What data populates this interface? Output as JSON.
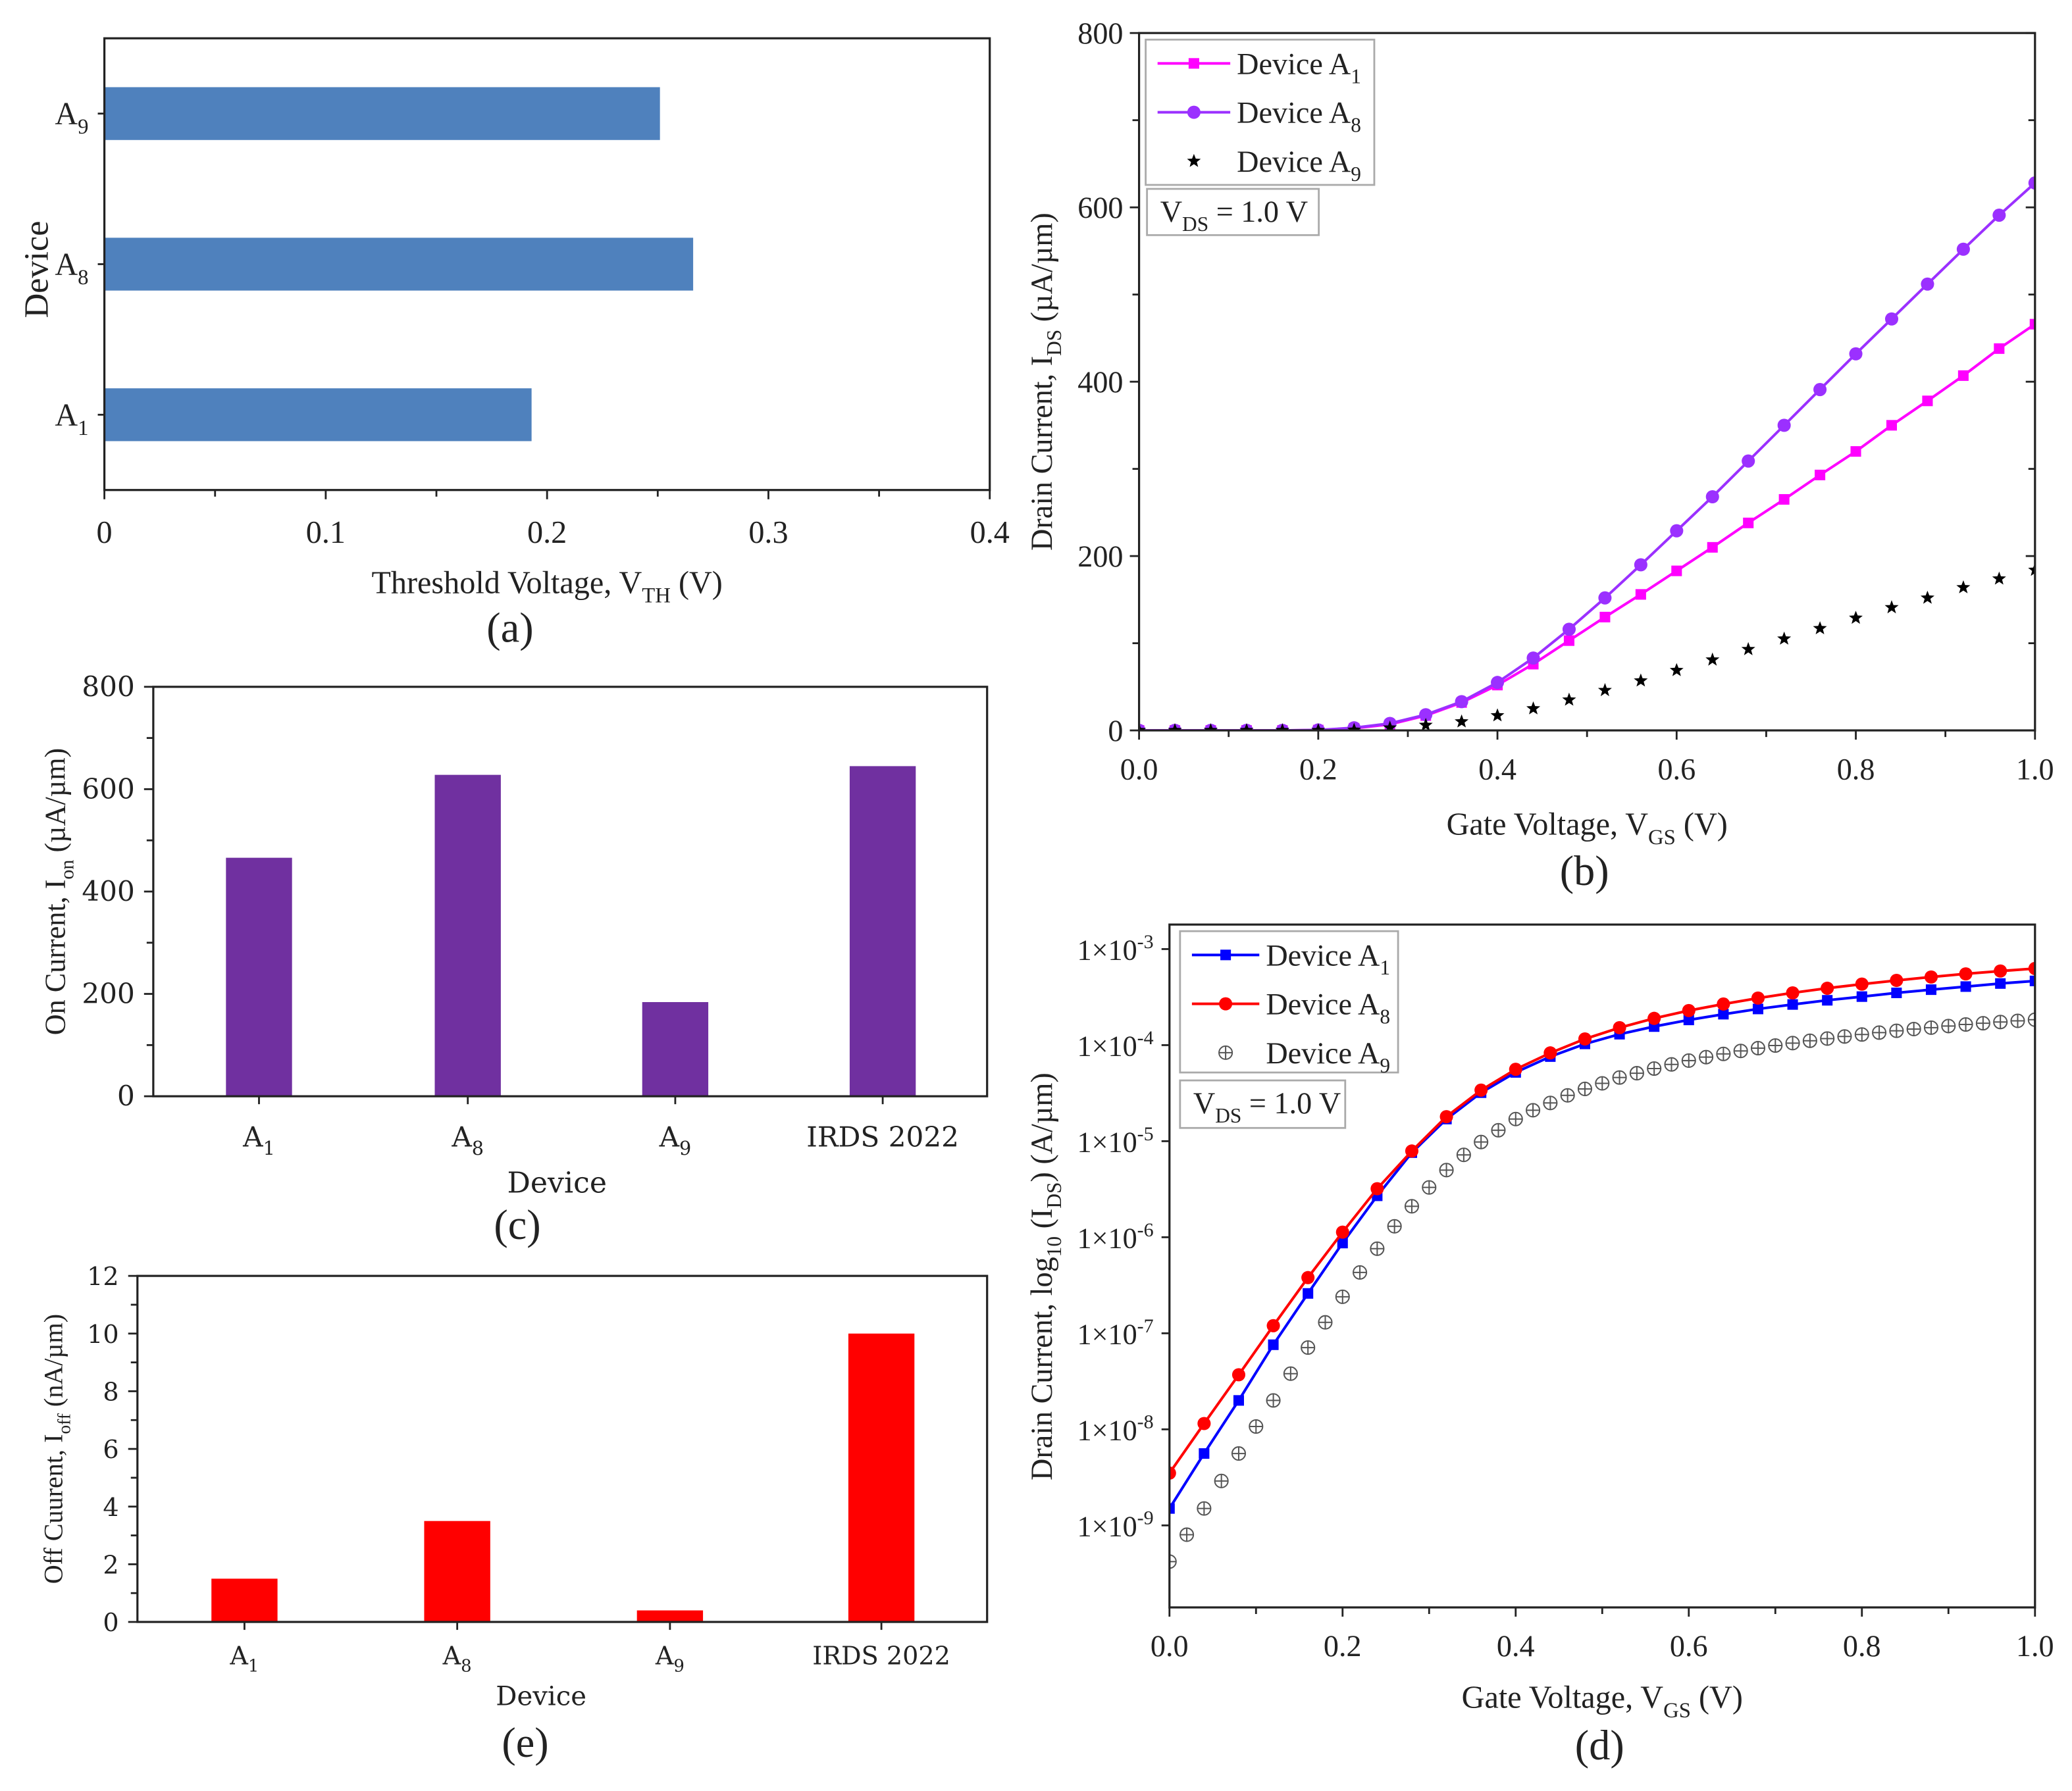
{
  "chart_data": [
    {
      "id": "a",
      "type": "bar",
      "orientation": "horizontal",
      "panel_label": "(a)",
      "categories": [
        [
          {
            "t": "A"
          },
          {
            "t": "1",
            "sub": true
          }
        ],
        [
          {
            "t": "A"
          },
          {
            "t": "8",
            "sub": true
          }
        ],
        [
          {
            "t": "A"
          },
          {
            "t": "9",
            "sub": true
          }
        ]
      ],
      "values": [
        0.193,
        0.266,
        0.251
      ],
      "color": "#4f81bd",
      "xlabel": [
        {
          "t": "Threshold Voltage, V"
        },
        {
          "t": "TH",
          "sub": true
        },
        {
          "t": " (V)"
        }
      ],
      "ylabel": [
        {
          "t": "Device"
        }
      ],
      "xlim": [
        0,
        0.4
      ],
      "xticks": [
        "0",
        "0.1",
        "0.2",
        "0.3",
        "0.4"
      ]
    },
    {
      "id": "b",
      "type": "line",
      "panel_label": "(b)",
      "xlabel": [
        {
          "t": "Gate Voltage, V"
        },
        {
          "t": "GS",
          "sub": true
        },
        {
          "t": " (V)"
        }
      ],
      "ylabel": [
        {
          "t": "Drain Current, I"
        },
        {
          "t": "DS",
          "sub": true
        },
        {
          "t": " (µA/µm)"
        }
      ],
      "xlim": [
        0,
        1
      ],
      "ylim": [
        0,
        800
      ],
      "xticks": [
        "0.0",
        "0.2",
        "0.4",
        "0.6",
        "0.8",
        "1.0"
      ],
      "yticks": [
        "0",
        "200",
        "400",
        "600",
        "800"
      ],
      "legend_position": "top-left",
      "annotation": [
        {
          "t": "V"
        },
        {
          "t": "DS",
          "sub": true
        },
        {
          "t": " = 1.0 V"
        }
      ],
      "series": [
        {
          "name": [
            {
              "t": "Device A"
            },
            {
              "t": "1",
              "sub": true
            }
          ],
          "color": "#ff00ff",
          "marker": "square",
          "line": true,
          "x_start": 0,
          "x_step": 0.04,
          "values": [
            0,
            0,
            0,
            0,
            0,
            0.4,
            2.5,
            7,
            17,
            32,
            52,
            76,
            103,
            130,
            156,
            183,
            210,
            238,
            265,
            293,
            320,
            350,
            378,
            407,
            438,
            466
          ]
        },
        {
          "name": [
            {
              "t": "Device A"
            },
            {
              "t": "8",
              "sub": true
            }
          ],
          "color": "#9b30ff",
          "marker": "circle",
          "line": true,
          "x_start": 0,
          "x_step": 0.04,
          "values": [
            0,
            0,
            0,
            0,
            0,
            0.5,
            3,
            8,
            18,
            33,
            55,
            83,
            116,
            152,
            190,
            229,
            268,
            309,
            350,
            391,
            432,
            472,
            512,
            552,
            591,
            628
          ]
        },
        {
          "name": [
            {
              "t": "Device A"
            },
            {
              "t": "9",
              "sub": true
            }
          ],
          "color": "#000000",
          "marker": "star",
          "line": false,
          "x_start": 0,
          "x_step": 0.04,
          "values": [
            0,
            0,
            0,
            0,
            0,
            0,
            0.5,
            3,
            6,
            10,
            17,
            25,
            35,
            46,
            57,
            69,
            81,
            93,
            105,
            117,
            129,
            141,
            152,
            164,
            174,
            184
          ]
        }
      ]
    },
    {
      "id": "c",
      "type": "bar",
      "panel_label": "(c)",
      "categories": [
        [
          {
            "t": "A"
          },
          {
            "t": "1",
            "sub": true
          }
        ],
        [
          {
            "t": "A"
          },
          {
            "t": "8",
            "sub": true
          }
        ],
        [
          {
            "t": "A"
          },
          {
            "t": "9",
            "sub": true
          }
        ],
        [
          {
            "t": "IRDS 2022"
          }
        ]
      ],
      "values": [
        466,
        628,
        184,
        645
      ],
      "color": "#7030a0",
      "xlabel": [
        {
          "t": "Device"
        }
      ],
      "ylabel": [
        {
          "t": "On Current, I"
        },
        {
          "t": "on",
          "sub": true
        },
        {
          "t": " (µA/µm)"
        }
      ],
      "ylim": [
        0,
        800
      ],
      "yticks": [
        "0",
        "200",
        "400",
        "600",
        "800"
      ]
    },
    {
      "id": "e",
      "type": "bar",
      "panel_label": "(e)",
      "categories": [
        [
          {
            "t": "A"
          },
          {
            "t": "1",
            "sub": true
          }
        ],
        [
          {
            "t": "A"
          },
          {
            "t": "8",
            "sub": true
          }
        ],
        [
          {
            "t": "A"
          },
          {
            "t": "9",
            "sub": true
          }
        ],
        [
          {
            "t": "IRDS 2022"
          }
        ]
      ],
      "values": [
        1.5,
        3.5,
        0.4,
        10
      ],
      "color": "#ff0000",
      "xlabel": [
        {
          "t": "Device"
        }
      ],
      "ylabel": [
        {
          "t": "Off Cuurent, I"
        },
        {
          "t": "off",
          "sub": true
        },
        {
          "t": " (nA/µm)"
        }
      ],
      "ylim": [
        0,
        12
      ],
      "yticks": [
        "0",
        "2",
        "4",
        "6",
        "8",
        "10",
        "12"
      ]
    },
    {
      "id": "d",
      "type": "line",
      "yscale": "log",
      "panel_label": "(d)",
      "xlabel": [
        {
          "t": "Gate Voltage, V"
        },
        {
          "t": "GS",
          "sub": true
        },
        {
          "t": " (V)"
        }
      ],
      "ylabel": [
        {
          "t": "Drain Current, log"
        },
        {
          "t": "10",
          "sub": true
        },
        {
          "t": " (I"
        },
        {
          "t": "DS",
          "sub": true
        },
        {
          "t": ") (A/µm)"
        }
      ],
      "xlim": [
        0,
        1
      ],
      "ylim": [
        1.4e-10,
        0.0018
      ],
      "xticks": [
        "0.0",
        "0.2",
        "0.4",
        "0.6",
        "0.8",
        "1.0"
      ],
      "yticks": [
        [
          {
            "t": "1×10"
          },
          {
            "t": "-9",
            "sup": true
          }
        ],
        [
          {
            "t": "1×10"
          },
          {
            "t": "-8",
            "sup": true
          }
        ],
        [
          {
            "t": "1×10"
          },
          {
            "t": "-7",
            "sup": true
          }
        ],
        [
          {
            "t": "1×10"
          },
          {
            "t": "-6",
            "sup": true
          }
        ],
        [
          {
            "t": "1×10"
          },
          {
            "t": "-5",
            "sup": true
          }
        ],
        [
          {
            "t": "1×10"
          },
          {
            "t": "-4",
            "sup": true
          }
        ],
        [
          {
            "t": "1×10"
          },
          {
            "t": "-3",
            "sup": true
          }
        ]
      ],
      "legend_position": "top-left",
      "annotation": [
        {
          "t": "V"
        },
        {
          "t": "DS",
          "sub": true
        },
        {
          "t": " = 1.0 V"
        }
      ],
      "series": [
        {
          "name": [
            {
              "t": "Device A"
            },
            {
              "t": "1",
              "sub": true
            }
          ],
          "color": "#0000ff",
          "marker": "square",
          "line": true,
          "x_start": 0,
          "x_step": 0.04,
          "values": [
            1.5e-09,
            5.6e-09,
            2e-08,
            7.6e-08,
            2.6e-07,
            8.7e-07,
            2.7e-06,
            7.6e-06,
            1.7e-05,
            3.2e-05,
            5.2e-05,
            7.6e-05,
            0.000103,
            0.00013,
            0.000156,
            0.000183,
            0.00021,
            0.000238,
            0.000265,
            0.000293,
            0.00032,
            0.00035,
            0.000378,
            0.000407,
            0.000438,
            0.000466
          ]
        },
        {
          "name": [
            {
              "t": "Device A"
            },
            {
              "t": "8",
              "sub": true
            }
          ],
          "color": "#ff0000",
          "marker": "circle",
          "line": true,
          "x_start": 0,
          "x_step": 0.04,
          "values": [
            3.5e-09,
            1.15e-08,
            3.7e-08,
            1.2e-07,
            3.8e-07,
            1.13e-06,
            3.2e-06,
            7.9e-06,
            1.8e-05,
            3.4e-05,
            5.6e-05,
            8.3e-05,
            0.000116,
            0.000152,
            0.00019,
            0.000229,
            0.000268,
            0.000309,
            0.00035,
            0.000391,
            0.000432,
            0.000472,
            0.000512,
            0.000552,
            0.000591,
            0.000628
          ]
        },
        {
          "name": [
            {
              "t": "Device A"
            },
            {
              "t": "9",
              "sub": true
            }
          ],
          "color": "#555555",
          "marker": "circled-plus",
          "line": false,
          "x_start": 0,
          "x_step": 0.02,
          "values": [
            4.2e-10,
            8e-10,
            1.5e-09,
            2.9e-09,
            5.6e-09,
            1.07e-08,
            2e-08,
            3.8e-08,
            7.1e-08,
            1.3e-07,
            2.4e-07,
            4.3e-07,
            7.6e-07,
            1.3e-06,
            2.1e-06,
            3.3e-06,
            5e-06,
            7.2e-06,
            9.8e-06,
            1.3e-05,
            1.7e-05,
            2.1e-05,
            2.5e-05,
            3e-05,
            3.5e-05,
            4e-05,
            4.6e-05,
            5.1e-05,
            5.7e-05,
            6.3e-05,
            6.9e-05,
            7.5e-05,
            8.1e-05,
            8.7e-05,
            9.3e-05,
            9.9e-05,
            0.000105,
            0.000111,
            0.000117,
            0.000123,
            0.000129,
            0.000135,
            0.000141,
            0.000147,
            0.000152,
            0.000158,
            0.000164,
            0.000169,
            0.000174,
            0.000179,
            0.000184
          ]
        }
      ]
    }
  ]
}
